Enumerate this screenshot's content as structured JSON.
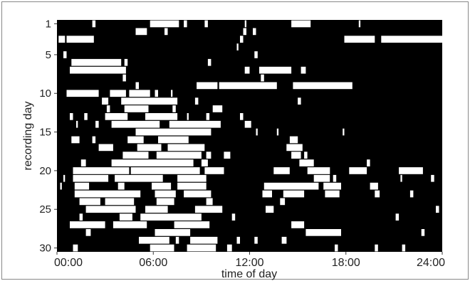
{
  "chart_data": {
    "type": "heatmap",
    "xlabel": "time of day",
    "ylabel": "recording day",
    "x_ticks": [
      "00:00",
      "06:00",
      "12:00",
      "18:00",
      "24:00"
    ],
    "x_tick_hours": [
      0,
      6,
      12,
      18,
      24
    ],
    "y_ticks": [
      1,
      5,
      10,
      15,
      20,
      25,
      30
    ],
    "xlim_hours": [
      0,
      24
    ],
    "ylim_days": [
      1,
      30
    ],
    "background_color": "#000000",
    "mark_color": "#ffffff",
    "active_intervals_hours": [
      [
        [
          2.2,
          2.4
        ],
        [
          5.8,
          7.6
        ],
        [
          7.9,
          8.1
        ],
        [
          9.2,
          9.4
        ],
        [
          11.7,
          11.8
        ],
        [
          14.6,
          15.8
        ],
        [
          18.8,
          18.9
        ]
      ],
      [
        [
          4.9,
          5.6
        ],
        [
          6.7,
          6.9
        ],
        [
          11.6,
          11.8
        ],
        [
          12.2,
          12.4
        ]
      ],
      [
        [
          0.1,
          0.5
        ],
        [
          0.6,
          2.3
        ],
        [
          11.4,
          11.6
        ],
        [
          17.9,
          19.8
        ],
        [
          20.2,
          24.0
        ]
      ],
      [
        [
          11.2,
          11.3
        ]
      ],
      [
        [
          0.4,
          0.6
        ],
        [
          12.3,
          12.5
        ]
      ],
      [
        [
          0.9,
          4.0
        ],
        [
          4.2,
          4.4
        ],
        [
          9.4,
          9.6
        ]
      ],
      [
        [
          0.8,
          4.3
        ],
        [
          11.7,
          12.0
        ],
        [
          12.6,
          14.6
        ],
        [
          15.2,
          15.5
        ]
      ],
      [
        [
          4.1,
          4.3
        ],
        [
          12.7,
          12.9
        ]
      ],
      [
        [
          4.9,
          5.1
        ],
        [
          8.7,
          10.0
        ],
        [
          10.1,
          13.7
        ],
        [
          14.7,
          18.4
        ]
      ],
      [
        [
          0.6,
          2.6
        ],
        [
          3.3,
          4.3
        ],
        [
          4.5,
          5.8
        ],
        [
          6.1,
          6.3
        ],
        [
          7.1,
          7.2
        ]
      ],
      [
        [
          2.8,
          3.2
        ],
        [
          4.0,
          7.5
        ],
        [
          8.6,
          8.8
        ],
        [
          15.0,
          15.2
        ]
      ],
      [
        [
          3.1,
          3.3
        ],
        [
          4.2,
          5.7
        ],
        [
          7.2,
          7.4
        ],
        [
          9.7,
          10.3
        ]
      ],
      [
        [
          0.8,
          1.0
        ],
        [
          1.7,
          1.9
        ],
        [
          3.0,
          4.4
        ],
        [
          5.5,
          7.5
        ],
        [
          8.1,
          8.2
        ],
        [
          9.3,
          9.5
        ],
        [
          11.4,
          11.6
        ]
      ],
      [
        [
          1.2,
          1.3
        ],
        [
          2.4,
          2.6
        ],
        [
          3.4,
          6.4
        ],
        [
          7.0,
          10.2
        ],
        [
          11.7,
          12.1
        ]
      ],
      [
        [
          4.9,
          9.6
        ],
        [
          12.4,
          12.5
        ],
        [
          13.7,
          13.8
        ],
        [
          17.8,
          17.9
        ]
      ],
      [
        [
          0.9,
          1.4
        ],
        [
          2.2,
          2.4
        ],
        [
          4.4,
          5.4
        ],
        [
          6.3,
          8.2
        ],
        [
          14.5,
          15.0
        ]
      ],
      [
        [
          2.6,
          3.5
        ],
        [
          5.0,
          6.5
        ],
        [
          6.9,
          9.2
        ],
        [
          14.3,
          15.3
        ]
      ],
      [
        [
          4.1,
          5.7
        ],
        [
          6.2,
          9.0
        ],
        [
          9.3,
          9.6
        ],
        [
          10.4,
          10.8
        ],
        [
          14.6,
          15.2
        ],
        [
          15.4,
          15.6
        ]
      ],
      [
        [
          1.5,
          1.8
        ],
        [
          3.4,
          8.5
        ],
        [
          9.0,
          9.4
        ],
        [
          15.1,
          16.0
        ],
        [
          19.3,
          19.5
        ]
      ],
      [
        [
          1.0,
          4.5
        ],
        [
          4.6,
          8.9
        ],
        [
          9.2,
          10.4
        ],
        [
          13.5,
          14.5
        ],
        [
          15.6,
          17.0
        ],
        [
          18.2,
          19.3
        ],
        [
          21.3,
          22.8
        ]
      ],
      [
        [
          0.4,
          0.5
        ],
        [
          1.0,
          3.2
        ],
        [
          3.6,
          6.6
        ],
        [
          7.5,
          9.3
        ],
        [
          16.0,
          17.0
        ],
        [
          17.2,
          17.4
        ],
        [
          21.4,
          21.5
        ],
        [
          23.3,
          23.5
        ]
      ],
      [
        [
          0.2,
          0.3
        ],
        [
          1.1,
          2.0
        ],
        [
          3.8,
          4.2
        ],
        [
          5.9,
          7.1
        ],
        [
          7.5,
          9.3
        ],
        [
          12.9,
          16.3
        ],
        [
          16.6,
          17.7
        ],
        [
          19.5,
          20.0
        ]
      ],
      [
        [
          1.1,
          5.2
        ],
        [
          6.1,
          7.4
        ],
        [
          7.9,
          9.6
        ],
        [
          12.8,
          13.4
        ],
        [
          14.1,
          15.4
        ],
        [
          16.7,
          17.6
        ],
        [
          19.8,
          20.1
        ],
        [
          22.0,
          22.2
        ]
      ],
      [
        [
          1.4,
          2.7
        ],
        [
          3.0,
          4.8
        ],
        [
          6.2,
          7.3
        ],
        [
          9.3,
          9.7
        ],
        [
          13.9,
          14.2
        ]
      ],
      [
        [
          1.8,
          4.9
        ],
        [
          5.5,
          6.9
        ],
        [
          8.6,
          10.3
        ],
        [
          13.0,
          13.5
        ],
        [
          23.6,
          23.8
        ]
      ],
      [
        [
          1.4,
          1.6
        ],
        [
          3.9,
          4.7
        ],
        [
          5.2,
          9.0
        ],
        [
          10.9,
          11.1
        ],
        [
          21.1,
          21.3
        ]
      ],
      [
        [
          0.8,
          3.0
        ],
        [
          3.5,
          5.6
        ],
        [
          7.3,
          9.5
        ],
        [
          14.6,
          15.4
        ]
      ],
      [
        [
          1.8,
          2.1
        ],
        [
          6.1,
          8.3
        ],
        [
          15.5,
          17.7
        ],
        [
          22.7,
          22.9
        ]
      ],
      [
        [
          5.1,
          7.0
        ],
        [
          7.4,
          7.6
        ],
        [
          8.3,
          10.0
        ],
        [
          11.2,
          11.4
        ],
        [
          12.3,
          12.5
        ],
        [
          14.0,
          14.3
        ]
      ],
      [
        [
          1.0,
          1.3
        ],
        [
          5.8,
          7.3
        ],
        [
          8.1,
          9.9
        ],
        [
          10.6,
          10.9
        ],
        [
          17.3,
          17.5
        ],
        [
          19.8,
          20.0
        ],
        [
          21.5,
          21.7
        ]
      ],
      [
        [
          1.9,
          4.0
        ],
        [
          6.4,
          7.9
        ],
        [
          8.6,
          10.6
        ],
        [
          13.8,
          16.5
        ],
        [
          16.8,
          19.1
        ]
      ]
    ]
  }
}
